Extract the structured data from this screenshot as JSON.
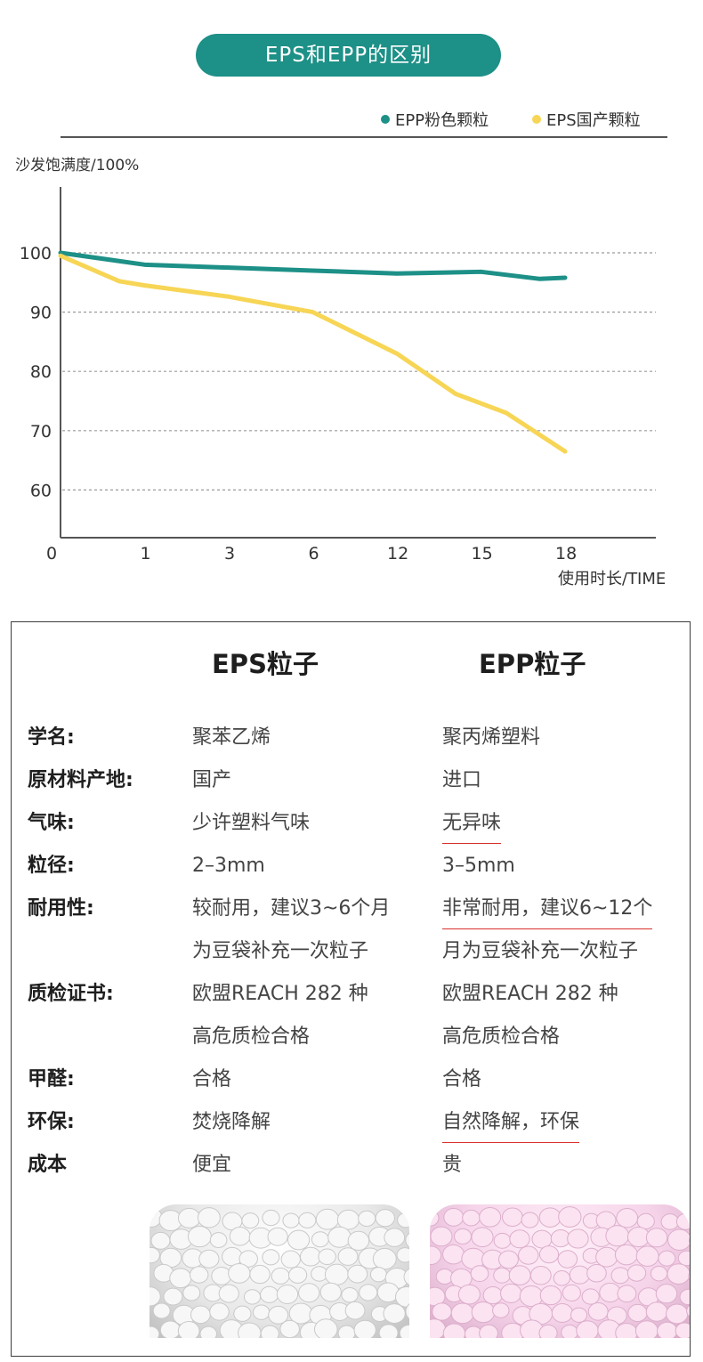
{
  "header": {
    "title": "EPS和EPP的区别"
  },
  "colors": {
    "teal": "#1d9087",
    "yellow": "#f7d555",
    "grid": "#9a9a9a",
    "underline": "#d9302c"
  },
  "chart_data": {
    "type": "line",
    "ylabel": "沙发饱满度/100%",
    "xlabel": "使用时长/TIME",
    "categories": [
      "0",
      "1",
      "3",
      "6",
      "12",
      "15",
      "18"
    ],
    "y_ticks": [
      "100",
      "90",
      "80",
      "70",
      "60"
    ],
    "ylim": [
      50,
      100
    ],
    "grid": "horizontal dashed",
    "legend_position": "top-right",
    "series": [
      {
        "name": "EPP粉色颗粒",
        "color": "#1d9087",
        "x": [
          0,
          1,
          2,
          3,
          4,
          5,
          5.7,
          6
        ],
        "values": [
          100,
          98,
          97.5,
          97,
          96.5,
          96.8,
          95.6,
          95.8
        ]
      },
      {
        "name": "EPS国产颗粒",
        "color": "#f7d555",
        "x": [
          0,
          0.7,
          1,
          2,
          3,
          4,
          4.7,
          5.3,
          6
        ],
        "values": [
          99.5,
          95.2,
          94.5,
          92.6,
          90,
          83,
          76.2,
          73,
          66.5
        ]
      }
    ]
  },
  "table": {
    "col1_head": "EPS粒子",
    "col2_head": "EPP粒子",
    "rows": [
      {
        "label": "学名:",
        "eps": "聚苯乙烯",
        "epp": "聚丙烯塑料"
      },
      {
        "label": "原材料产地:",
        "eps": "国产",
        "epp": "进口"
      },
      {
        "label": "气味:",
        "eps": "少许塑料气味",
        "epp": "无异味"
      },
      {
        "label": "粒径:",
        "eps": "2–3mm",
        "epp": "3–5mm"
      },
      {
        "label": "耐用性:",
        "eps": "较耐用，建议3~6个月",
        "epp": "非常耐用，建议6~12个"
      },
      {
        "label": "",
        "eps": "为豆袋补充一次粒子",
        "epp": "月为豆袋补充一次粒子"
      },
      {
        "label": "质检证书:",
        "eps": "欧盟REACH 282 种",
        "epp": "欧盟REACH 282 种"
      },
      {
        "label": "",
        "eps": "高危质检合格",
        "epp": "高危质检合格"
      },
      {
        "label": "甲醛:",
        "eps": "合格",
        "epp": "合格"
      },
      {
        "label": "环保:",
        "eps": "焚烧降解",
        "epp": "自然降解，环保"
      },
      {
        "label": "成本",
        "eps": "便宜",
        "epp": "贵"
      }
    ]
  }
}
